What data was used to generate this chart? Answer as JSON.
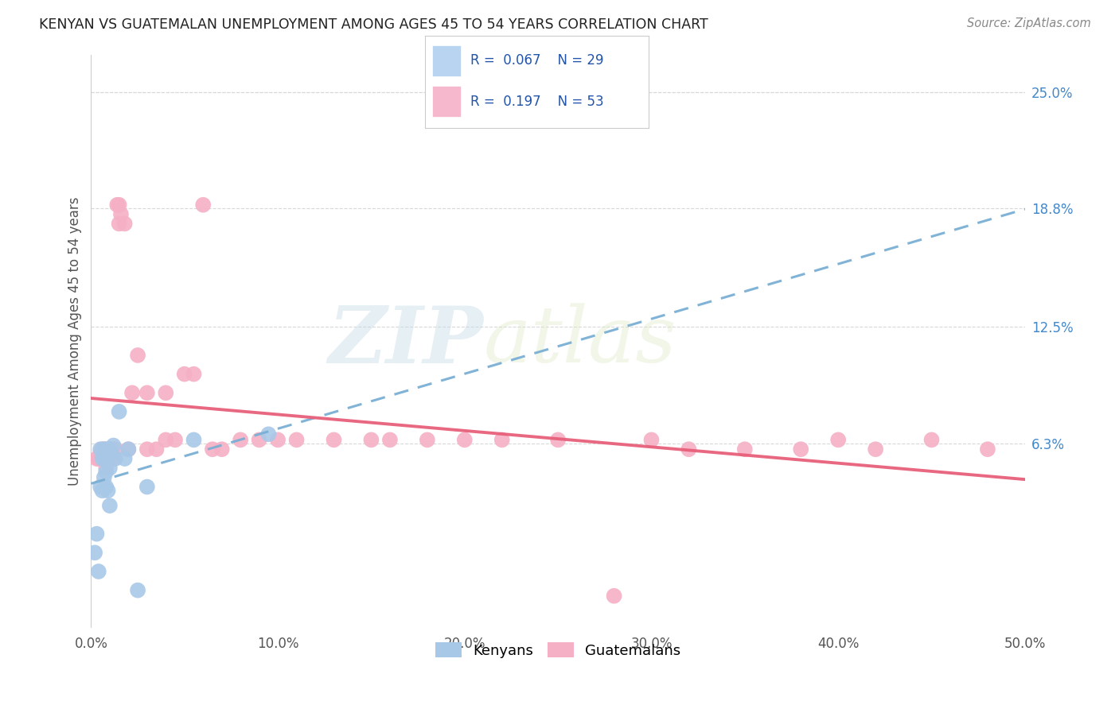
{
  "title": "KENYAN VS GUATEMALAN UNEMPLOYMENT AMONG AGES 45 TO 54 YEARS CORRELATION CHART",
  "source": "Source: ZipAtlas.com",
  "ylabel": "Unemployment Among Ages 45 to 54 years",
  "xlabel_ticks": [
    "0.0%",
    "10.0%",
    "20.0%",
    "30.0%",
    "40.0%",
    "50.0%"
  ],
  "xlabel_vals": [
    0.0,
    0.1,
    0.2,
    0.3,
    0.4,
    0.5
  ],
  "ytick_labels": [
    "25.0%",
    "18.8%",
    "12.5%",
    "6.3%"
  ],
  "ytick_vals": [
    0.25,
    0.188,
    0.125,
    0.063
  ],
  "xlim": [
    0.0,
    0.5
  ],
  "ylim": [
    -0.035,
    0.27
  ],
  "watermark_zip": "ZIP",
  "watermark_atlas": "atlas",
  "kenyan_R": 0.067,
  "kenyan_N": 29,
  "guatemalan_R": 0.197,
  "guatemalan_N": 53,
  "kenyan_color": "#a8c8e8",
  "guatemalan_color": "#f5b0c5",
  "kenyan_line_color": "#7aafd4",
  "guatemalan_line_color": "#e8607a",
  "legend_box_kenyan": "#b8d4f0",
  "legend_box_guatemalan": "#f5b8cc",
  "kenyan_x": [
    0.002,
    0.003,
    0.004,
    0.005,
    0.005,
    0.006,
    0.006,
    0.007,
    0.007,
    0.007,
    0.008,
    0.008,
    0.008,
    0.008,
    0.009,
    0.009,
    0.01,
    0.01,
    0.01,
    0.011,
    0.012,
    0.013,
    0.015,
    0.018,
    0.02,
    0.025,
    0.03,
    0.055,
    0.095
  ],
  "kenyan_y": [
    0.005,
    0.015,
    -0.005,
    0.04,
    0.06,
    0.038,
    0.055,
    0.045,
    0.055,
    0.06,
    0.04,
    0.048,
    0.055,
    0.06,
    0.038,
    0.058,
    0.03,
    0.05,
    0.06,
    0.058,
    0.062,
    0.055,
    0.08,
    0.055,
    0.06,
    -0.015,
    0.04,
    0.065,
    0.068
  ],
  "guatemalan_x": [
    0.003,
    0.004,
    0.005,
    0.006,
    0.007,
    0.007,
    0.008,
    0.009,
    0.009,
    0.01,
    0.01,
    0.011,
    0.012,
    0.013,
    0.014,
    0.015,
    0.015,
    0.016,
    0.018,
    0.02,
    0.022,
    0.025,
    0.03,
    0.03,
    0.035,
    0.04,
    0.04,
    0.045,
    0.05,
    0.055,
    0.06,
    0.065,
    0.07,
    0.08,
    0.09,
    0.1,
    0.11,
    0.13,
    0.15,
    0.16,
    0.18,
    0.2,
    0.22,
    0.25,
    0.28,
    0.3,
    0.32,
    0.35,
    0.38,
    0.4,
    0.42,
    0.45,
    0.48
  ],
  "guatemalan_y": [
    0.055,
    0.055,
    0.058,
    0.06,
    0.055,
    0.06,
    0.05,
    0.06,
    0.055,
    0.06,
    0.055,
    0.06,
    0.055,
    0.06,
    0.19,
    0.19,
    0.18,
    0.185,
    0.18,
    0.06,
    0.09,
    0.11,
    0.06,
    0.09,
    0.06,
    0.065,
    0.09,
    0.065,
    0.1,
    0.1,
    0.19,
    0.06,
    0.06,
    0.065,
    0.065,
    0.065,
    0.065,
    0.065,
    0.065,
    0.065,
    0.065,
    0.065,
    0.065,
    0.065,
    -0.018,
    0.065,
    0.06,
    0.06,
    0.06,
    0.065,
    0.06,
    0.065,
    0.06
  ],
  "background_color": "#ffffff",
  "grid_color": "#d8d8d8",
  "title_color": "#222222",
  "axis_label_color": "#555555",
  "right_label_color": "#4488cc",
  "bottom_label_color": "#555555"
}
